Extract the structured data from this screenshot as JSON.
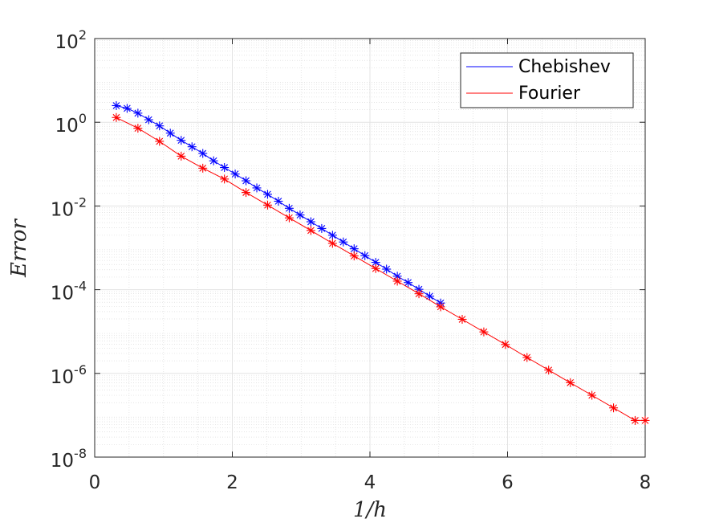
{
  "chart_data": {
    "type": "line",
    "title": "",
    "xlabel": "1/h",
    "ylabel": "Error",
    "xlim": [
      0,
      8
    ],
    "ylim": [
      1e-08,
      100
    ],
    "yscale": "log",
    "xticks": [
      "0",
      "2",
      "4",
      "6",
      "8"
    ],
    "yticks": [
      {
        "base": "10",
        "exp": "2"
      },
      {
        "base": "10",
        "exp": "0"
      },
      {
        "base": "10",
        "exp": "-2"
      },
      {
        "base": "10",
        "exp": "-4"
      },
      {
        "base": "10",
        "exp": "-6"
      },
      {
        "base": "10",
        "exp": "-8"
      }
    ],
    "grid": true,
    "minor_grid": true,
    "legend_position": "top-right",
    "series": [
      {
        "name": "Chebishev",
        "color": "#0000ff",
        "marker": "asterisk",
        "x": [
          0.314,
          0.471,
          0.628,
          0.785,
          0.942,
          1.099,
          1.257,
          1.414,
          1.571,
          1.728,
          1.885,
          2.042,
          2.199,
          2.356,
          2.513,
          2.67,
          2.827,
          2.985,
          3.142,
          3.299,
          3.456,
          3.613,
          3.77,
          3.927,
          4.084,
          4.241,
          4.398,
          4.555,
          4.712,
          4.869,
          5.027
        ],
        "y": [
          2.5,
          2.15,
          1.65,
          1.15,
          0.82,
          0.55,
          0.37,
          0.26,
          0.18,
          0.12,
          0.083,
          0.058,
          0.04,
          0.027,
          0.019,
          0.013,
          0.0088,
          0.0061,
          0.0042,
          0.0029,
          0.002,
          0.00138,
          0.00095,
          0.00065,
          0.00045,
          0.00031,
          0.00021,
          0.000148,
          0.000102,
          7e-05,
          4.8e-05
        ]
      },
      {
        "name": "Fourier",
        "color": "#ff0000",
        "marker": "asterisk",
        "x": [
          0.314,
          0.628,
          0.942,
          1.257,
          1.571,
          1.885,
          2.199,
          2.513,
          2.827,
          3.142,
          3.456,
          3.77,
          4.084,
          4.398,
          4.712,
          5.027,
          5.341,
          5.655,
          5.969,
          6.283,
          6.597,
          6.912,
          7.226,
          7.54,
          7.854,
          8.0
        ],
        "y": [
          1.3,
          0.72,
          0.35,
          0.155,
          0.08,
          0.044,
          0.021,
          0.0105,
          0.0052,
          0.0026,
          0.00128,
          0.00064,
          0.00032,
          0.00016,
          8e-05,
          3.9e-05,
          1.96e-05,
          9.8e-06,
          4.9e-06,
          2.4e-06,
          1.2e-06,
          6e-07,
          3e-07,
          1.5e-07,
          7.5e-08,
          7.5e-08
        ]
      }
    ]
  }
}
